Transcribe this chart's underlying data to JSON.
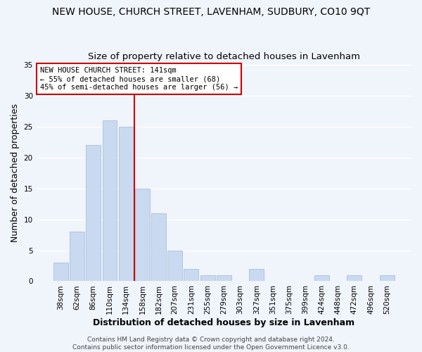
{
  "title": "NEW HOUSE, CHURCH STREET, LAVENHAM, SUDBURY, CO10 9QT",
  "subtitle": "Size of property relative to detached houses in Lavenham",
  "xlabel": "Distribution of detached houses by size in Lavenham",
  "ylabel": "Number of detached properties",
  "bar_labels": [
    "38sqm",
    "62sqm",
    "86sqm",
    "110sqm",
    "134sqm",
    "158sqm",
    "182sqm",
    "207sqm",
    "231sqm",
    "255sqm",
    "279sqm",
    "303sqm",
    "327sqm",
    "351sqm",
    "375sqm",
    "399sqm",
    "424sqm",
    "448sqm",
    "472sqm",
    "496sqm",
    "520sqm"
  ],
  "bar_values": [
    3,
    8,
    22,
    26,
    25,
    15,
    11,
    5,
    2,
    1,
    1,
    0,
    2,
    0,
    0,
    0,
    1,
    0,
    1,
    0,
    1
  ],
  "bar_color": "#c9d9f0",
  "bar_edge_color": "#a8c0dc",
  "vline_x": 4.5,
  "vline_color": "#cc0000",
  "ylim": [
    0,
    35
  ],
  "yticks": [
    0,
    5,
    10,
    15,
    20,
    25,
    30,
    35
  ],
  "annotation_lines": [
    "NEW HOUSE CHURCH STREET: 141sqm",
    "← 55% of detached houses are smaller (68)",
    "45% of semi-detached houses are larger (56) →"
  ],
  "annotation_box_color": "#ffffff",
  "annotation_box_edge_color": "#cc0000",
  "footer_line1": "Contains HM Land Registry data © Crown copyright and database right 2024.",
  "footer_line2": "Contains public sector information licensed under the Open Government Licence v3.0.",
  "bg_color": "#f0f4fb",
  "grid_color": "#ffffff",
  "title_fontsize": 10,
  "subtitle_fontsize": 9.5,
  "tick_fontsize": 7.5,
  "axis_label_fontsize": 9,
  "footer_fontsize": 6.5
}
